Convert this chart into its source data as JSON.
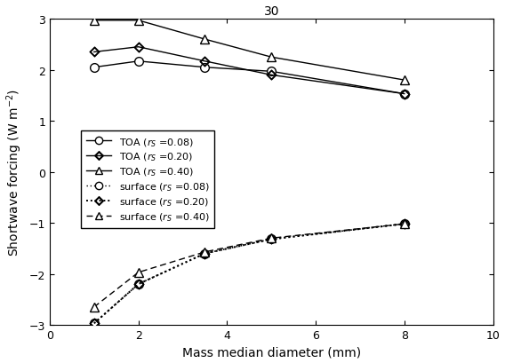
{
  "title": "30",
  "xlabel": "Mass median diameter (mm)",
  "ylabel": "Shortwave forcing (W m$^{-2}$)",
  "xlim": [
    0,
    10
  ],
  "ylim": [
    -3,
    3
  ],
  "yticks": [
    -3,
    -2,
    -1,
    0,
    1,
    2,
    3
  ],
  "xticks": [
    0,
    2,
    4,
    6,
    8,
    10
  ],
  "x": [
    1,
    2,
    3.5,
    5,
    8
  ],
  "TOA_r008": [
    2.05,
    2.17,
    2.05,
    1.97,
    1.53
  ],
  "TOA_r020": [
    2.35,
    2.45,
    2.17,
    1.9,
    1.53
  ],
  "TOA_r040": [
    2.97,
    2.97,
    2.6,
    2.25,
    1.8
  ],
  "surf_r008": [
    -2.97,
    -2.2,
    -1.6,
    -1.32,
    -1.02
  ],
  "surf_r020": [
    -2.97,
    -2.2,
    -1.6,
    -1.32,
    -1.02
  ],
  "surf_r040": [
    -2.65,
    -1.97,
    -1.57,
    -1.3,
    -1.02
  ],
  "color": "black",
  "background": "white"
}
